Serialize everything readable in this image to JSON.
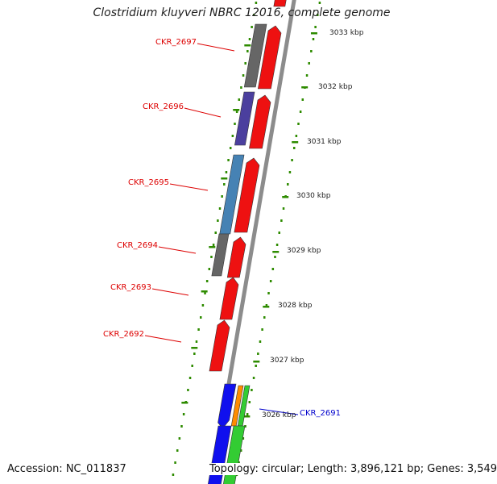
{
  "title": "Clostridium kluyveri NBRC 12016, complete genome",
  "accession": "Accession: NC_011837",
  "topology": "Topology: circular; Length: 3,896,121 bp; Genes: 3,549",
  "scale_labels": [
    "3033 kbp",
    "3032 kbp",
    "3031 kbp",
    "3030 kbp",
    "3029 kbp",
    "3028 kbp",
    "3027 kbp",
    "3026 kbp"
  ],
  "gene_labels": [
    {
      "name": "CKR_2697",
      "color": "#dd0000"
    },
    {
      "name": "CKR_2696",
      "color": "#dd0000"
    },
    {
      "name": "CKR_2695",
      "color": "#dd0000"
    },
    {
      "name": "CKR_2694",
      "color": "#dd0000"
    },
    {
      "name": "CKR_2693",
      "color": "#dd0000"
    },
    {
      "name": "CKR_2692",
      "color": "#dd0000"
    },
    {
      "name": "CKR_2691",
      "color": "#0000cc"
    }
  ],
  "colors": {
    "backbone": "#8c8c8c",
    "cds_red": "#ee1111",
    "gray": "#666666",
    "purple": "#4b3f9e",
    "steel_blue": "#4682b4",
    "blue": "#1010ee",
    "orange": "#ff8c00",
    "green": "#33cc33",
    "tick_green": "#2e8b00"
  }
}
